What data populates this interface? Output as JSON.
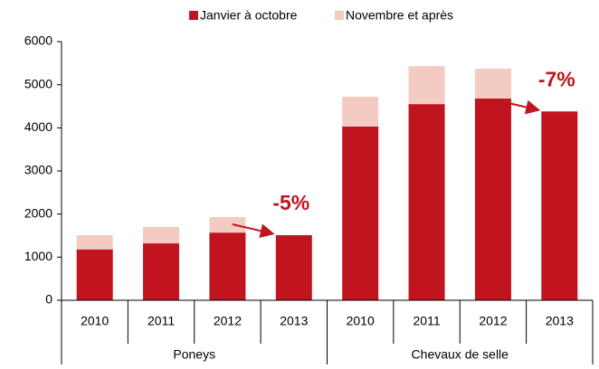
{
  "chart_data": {
    "type": "stacked_bar",
    "categories": [
      "2010",
      "2011",
      "2012",
      "2013",
      "2010",
      "2011",
      "2012",
      "2013"
    ],
    "groups": [
      {
        "label": "Poneys",
        "size": 4
      },
      {
        "label": "Chevaux de selle",
        "size": 4
      }
    ],
    "series": [
      {
        "name": "Janvier à octobre",
        "color": "#c0141f",
        "values": [
          1180,
          1320,
          1570,
          1510,
          4030,
          4550,
          4680,
          4380
        ]
      },
      {
        "name": "Novembre et après",
        "color": "#f4cbc2",
        "values": [
          330,
          380,
          360,
          0,
          690,
          880,
          690,
          0
        ]
      }
    ],
    "ylim": [
      0,
      6000
    ],
    "yticks": [
      0,
      1000,
      2000,
      3000,
      4000,
      5000,
      6000
    ],
    "grid": false,
    "legend": "top",
    "annotations": [
      {
        "text": "-5%",
        "category": 3
      },
      {
        "text": "-7%",
        "category": 7
      }
    ]
  }
}
